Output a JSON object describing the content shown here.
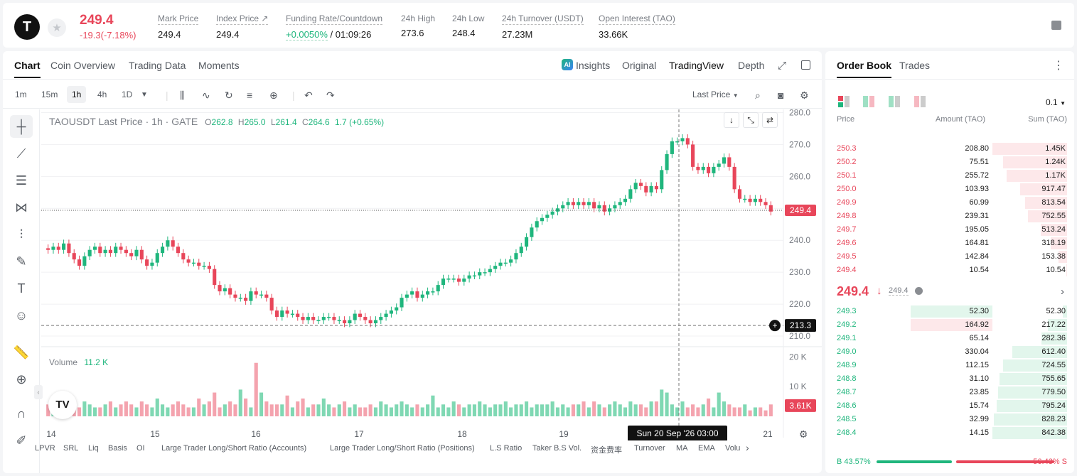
{
  "ticker": {
    "logo": "T",
    "last_price": "249.4",
    "change": "-19.3(-7.18%)",
    "stats": [
      {
        "label": "Mark Price",
        "value": "249.4"
      },
      {
        "label": "Index Price ↗",
        "value": "249.4"
      },
      {
        "label": "Funding Rate/Countdown",
        "value_rate": "+0.0050%",
        "value_countdown": "/ 01:09:26"
      },
      {
        "label": "24h High",
        "value": "273.6"
      },
      {
        "label": "24h Low",
        "value": "248.4"
      },
      {
        "label": "24h Turnover (USDT)",
        "value": "27.23M"
      },
      {
        "label": "Open Interest (TAO)",
        "value": "33.66K"
      }
    ]
  },
  "chart_tabs": [
    "Chart",
    "Coin Overview",
    "Trading Data",
    "Moments"
  ],
  "view_tabs": {
    "ai": "AI",
    "insights": "Insights",
    "original": "Original",
    "tradingview": "TradingView",
    "depth": "Depth"
  },
  "timeframes": [
    "1m",
    "15m",
    "1h",
    "4h",
    "1D"
  ],
  "price_source": "Last Price",
  "chart_header": {
    "title": "TAOUSDT Last Price · 1h · GATE",
    "o_label": "O",
    "o": "262.8",
    "h_label": "H",
    "h": "265.0",
    "l_label": "L",
    "l": "261.4",
    "c_label": "C",
    "c": "264.6",
    "chg": "1.7 (+0.65%)"
  },
  "volume_label": "Volume",
  "volume_value": "11.2 K",
  "crosshair_date": "Sun 20 Sep '26   03:00",
  "bottom_indicators": [
    "LPVR",
    "SRL",
    "Liq",
    "Basis",
    "OI",
    "Large Trader Long/Short Ratio (Accounts)",
    "Large Trader Long/Short Ratio (Positions)",
    "L.S Ratio",
    "Taker B.S Vol.",
    "资金费率",
    "Turnover",
    "MA",
    "EMA",
    "Volu"
  ],
  "chart_data": {
    "type": "candlestick",
    "title": "TAOUSDT Last Price · 1h · GATE",
    "y_ticks": [
      "280.0",
      "270.0",
      "260.0",
      "250.0",
      "240.0",
      "230.0",
      "220.0",
      "210.0"
    ],
    "ylim": [
      208,
      281
    ],
    "vol_ticks": [
      "20 K",
      "10 K"
    ],
    "x_ticks": [
      "14",
      "15",
      "16",
      "17",
      "18",
      "19",
      "21"
    ],
    "last_price_tag": "249.4",
    "crosshair_price_tag": "213.3",
    "last_volume_tag": "3.61K",
    "close_series": [
      237,
      238,
      237,
      239,
      236,
      234,
      232,
      235,
      237,
      238,
      236,
      237,
      236,
      238,
      237,
      236,
      235,
      237,
      234,
      232,
      233,
      236,
      238,
      240,
      238,
      236,
      234,
      233,
      233,
      232,
      232,
      231,
      226,
      224,
      225,
      223,
      222,
      222,
      221,
      224,
      223,
      223,
      222,
      218,
      216,
      218,
      217,
      217,
      216,
      215,
      216,
      215,
      215,
      216,
      216,
      215,
      215,
      214,
      215,
      217,
      216,
      215,
      214,
      215,
      216,
      217,
      218,
      219,
      222,
      223,
      224,
      222,
      223,
      224,
      224,
      226,
      228,
      228,
      228,
      227,
      228,
      229,
      229,
      230,
      230,
      231,
      232,
      233,
      233,
      234,
      236,
      238,
      241,
      244,
      246,
      247,
      248,
      249,
      250,
      251,
      252,
      251,
      252,
      251,
      252,
      250,
      251,
      249,
      250,
      251,
      252,
      253,
      256,
      258,
      257,
      255,
      257,
      256,
      262,
      267,
      271,
      271,
      272,
      270,
      263,
      262,
      263,
      261,
      263,
      264,
      266,
      263,
      256,
      253,
      253,
      252,
      253,
      252,
      251,
      249
    ],
    "volume_series": [
      4,
      5,
      3,
      4,
      2,
      4,
      3,
      5,
      4,
      3,
      3,
      4,
      5,
      3,
      4,
      5,
      4,
      3,
      5,
      4,
      3,
      6,
      4,
      3,
      4,
      5,
      4,
      3,
      3,
      6,
      4,
      5,
      8,
      3,
      4,
      5,
      4,
      9,
      6,
      3,
      18,
      8,
      5,
      4,
      4,
      4,
      7,
      3,
      5,
      6,
      3,
      4,
      4,
      6,
      4,
      3,
      4,
      5,
      3,
      4,
      3,
      3,
      4,
      3,
      5,
      4,
      3,
      4,
      5,
      4,
      3,
      4,
      3,
      4,
      7,
      3,
      4,
      3,
      5,
      4,
      3,
      4,
      4,
      5,
      4,
      3,
      4,
      4,
      5,
      3,
      4,
      4,
      5,
      3,
      4,
      4,
      4,
      5,
      3,
      4,
      3,
      4,
      4,
      5,
      3,
      5,
      4,
      3,
      4,
      5,
      4,
      3,
      5,
      4,
      4,
      3,
      5,
      5,
      9,
      8,
      4,
      3,
      5,
      3,
      4,
      3,
      4,
      6,
      3,
      8,
      5,
      4,
      3,
      3,
      4,
      2,
      3,
      3,
      2,
      4
    ]
  },
  "order_book": {
    "tabs": [
      "Order Book",
      "Trades"
    ],
    "precision": "0.1",
    "headers": {
      "price": "Price",
      "amount": "Amount (TAO)",
      "sum": "Sum (TAO)"
    },
    "asks": [
      {
        "price": "250.3",
        "amount": "208.80",
        "sum": "1.45K",
        "depth": 1.0
      },
      {
        "price": "250.2",
        "amount": "75.51",
        "sum": "1.24K",
        "depth": 0.86
      },
      {
        "price": "250.1",
        "amount": "255.72",
        "sum": "1.17K",
        "depth": 0.81
      },
      {
        "price": "250.0",
        "amount": "103.93",
        "sum": "917.47",
        "depth": 0.63
      },
      {
        "price": "249.9",
        "amount": "60.99",
        "sum": "813.54",
        "depth": 0.56
      },
      {
        "price": "249.8",
        "amount": "239.31",
        "sum": "752.55",
        "depth": 0.52
      },
      {
        "price": "249.7",
        "amount": "195.05",
        "sum": "513.24",
        "depth": 0.35
      },
      {
        "price": "249.6",
        "amount": "164.81",
        "sum": "318.19",
        "depth": 0.22
      },
      {
        "price": "249.5",
        "amount": "142.84",
        "sum": "153.38",
        "depth": 0.11
      },
      {
        "price": "249.4",
        "amount": "10.54",
        "sum": "10.54",
        "depth": 0.01
      }
    ],
    "mid": {
      "price": "249.4",
      "arrow": "↓",
      "mark": "249.4"
    },
    "bids": [
      {
        "price": "249.3",
        "amount": "52.30",
        "sum": "52.30",
        "depth": 0.06
      },
      {
        "price": "249.2",
        "amount": "164.92",
        "sum": "217.22",
        "depth": 0.26
      },
      {
        "price": "249.1",
        "amount": "65.14",
        "sum": "282.36",
        "depth": 0.34
      },
      {
        "price": "249.0",
        "amount": "330.04",
        "sum": "612.40",
        "depth": 0.73
      },
      {
        "price": "248.9",
        "amount": "112.15",
        "sum": "724.55",
        "depth": 0.86
      },
      {
        "price": "248.8",
        "amount": "31.10",
        "sum": "755.65",
        "depth": 0.9
      },
      {
        "price": "248.7",
        "amount": "23.85",
        "sum": "779.50",
        "depth": 0.92
      },
      {
        "price": "248.6",
        "amount": "15.74",
        "sum": "795.24",
        "depth": 0.94
      },
      {
        "price": "248.5",
        "amount": "32.99",
        "sum": "828.23",
        "depth": 0.98
      },
      {
        "price": "248.4",
        "amount": "14.15",
        "sum": "842.38",
        "depth": 1.0
      }
    ],
    "buy_ratio_label": "B 43.57%",
    "sell_ratio_label": "56.43% S",
    "buy_ratio": 0.4357
  },
  "colors": {
    "up": "#1fb67d",
    "down": "#e8465a",
    "up_fill": "#7fd8b3",
    "down_fill": "#f4a3ae"
  }
}
